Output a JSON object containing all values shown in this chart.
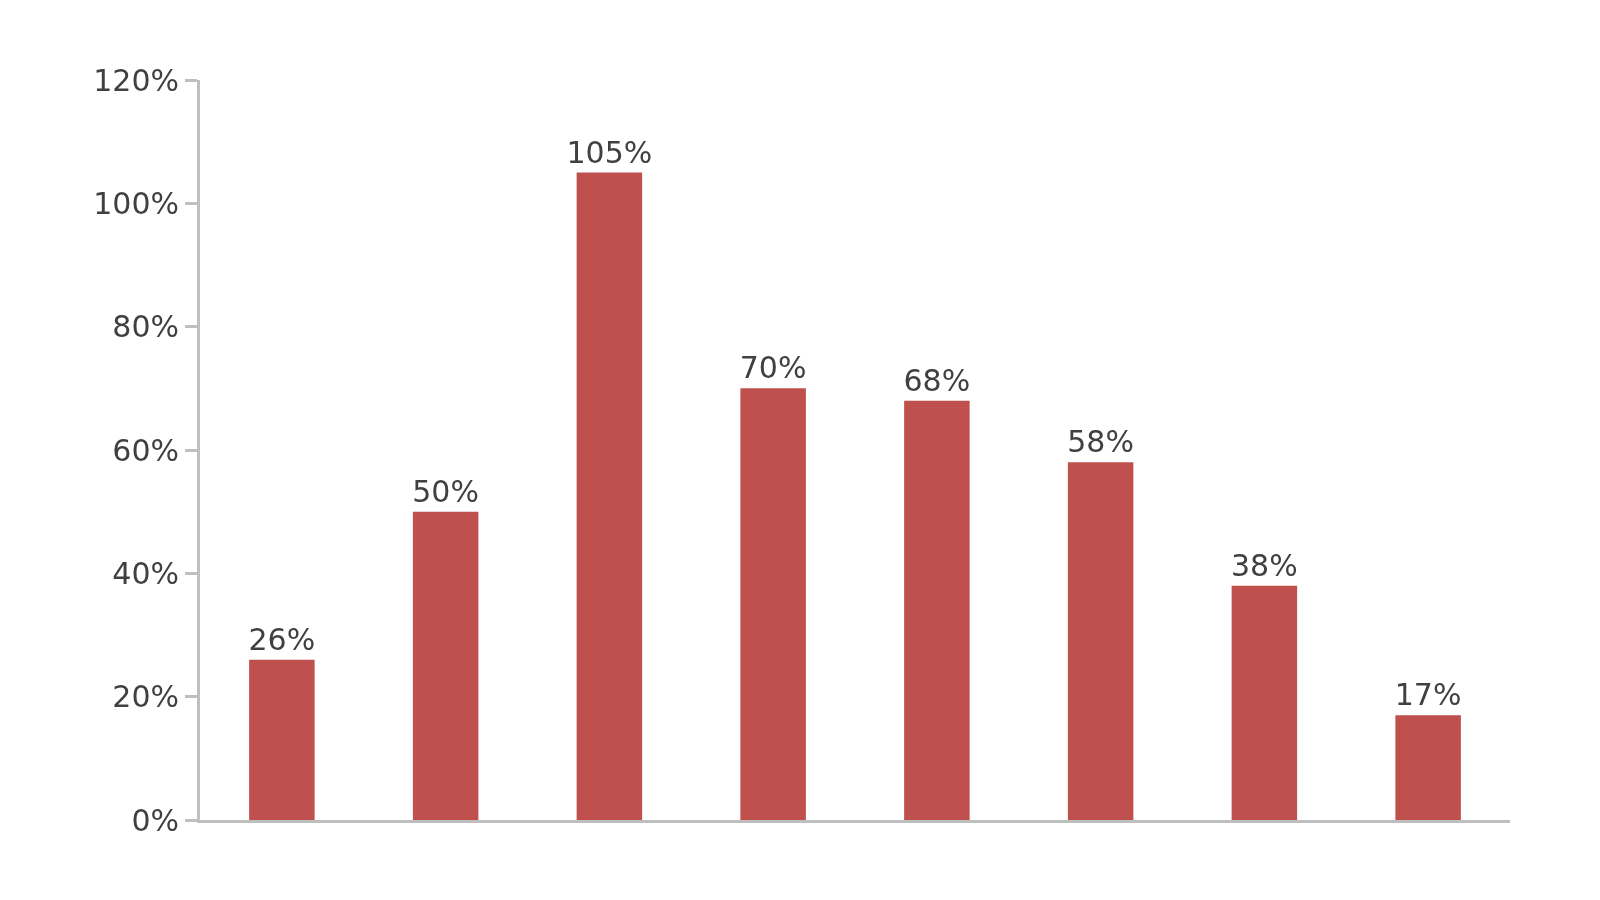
{
  "chart_data": {
    "type": "bar",
    "categories": [
      null,
      null,
      null,
      null,
      null,
      null,
      null,
      null
    ],
    "values": [
      26,
      50,
      105,
      70,
      68,
      58,
      38,
      17
    ],
    "value_labels": [
      "26%",
      "50%",
      "105%",
      "70%",
      "68%",
      "58%",
      "38%",
      "17%"
    ],
    "color": "#c0504d",
    "ylim": [
      0,
      120
    ],
    "yticks": [
      {
        "value": 0,
        "label": "0%"
      },
      {
        "value": 20,
        "label": "20%"
      },
      {
        "value": 40,
        "label": "40%"
      },
      {
        "value": 60,
        "label": "60%"
      },
      {
        "value": 80,
        "label": "80%"
      },
      {
        "value": 100,
        "label": "100%"
      },
      {
        "value": 120,
        "label": "120%"
      }
    ],
    "grid": false
  }
}
